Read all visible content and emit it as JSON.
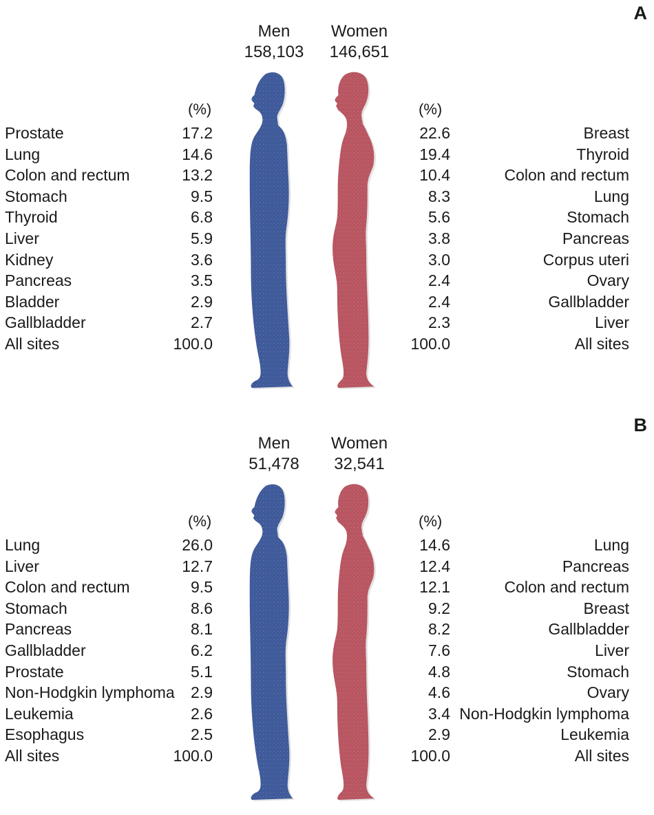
{
  "chart_data": [
    {
      "type": "table",
      "panel": "A",
      "pct_label": "(%)",
      "men": {
        "label": "Men",
        "total": "158,103",
        "color": "#3f5a9a",
        "rows": [
          {
            "site": "Prostate",
            "value": "17.2"
          },
          {
            "site": "Lung",
            "value": "14.6"
          },
          {
            "site": "Colon and rectum",
            "value": "13.2"
          },
          {
            "site": "Stomach",
            "value": "9.5"
          },
          {
            "site": "Thyroid",
            "value": "6.8"
          },
          {
            "site": "Liver",
            "value": "5.9"
          },
          {
            "site": "Kidney",
            "value": "3.6"
          },
          {
            "site": "Pancreas",
            "value": "3.5"
          },
          {
            "site": "Bladder",
            "value": "2.9"
          },
          {
            "site": "Gallbladder",
            "value": "2.7"
          },
          {
            "site": "All sites",
            "value": "100.0"
          }
        ]
      },
      "women": {
        "label": "Women",
        "total": "146,651",
        "color": "#b85560",
        "rows": [
          {
            "site": "Breast",
            "value": "22.6"
          },
          {
            "site": "Thyroid",
            "value": "19.4"
          },
          {
            "site": "Colon and rectum",
            "value": "10.4"
          },
          {
            "site": "Lung",
            "value": "8.3"
          },
          {
            "site": "Stomach",
            "value": "5.6"
          },
          {
            "site": "Pancreas",
            "value": "3.8"
          },
          {
            "site": "Corpus uteri",
            "value": "3.0"
          },
          {
            "site": "Ovary",
            "value": "2.4"
          },
          {
            "site": "Gallbladder",
            "value": "2.4"
          },
          {
            "site": "Liver",
            "value": "2.3"
          },
          {
            "site": "All sites",
            "value": "100.0"
          }
        ]
      }
    },
    {
      "type": "table",
      "panel": "B",
      "pct_label": "(%)",
      "men": {
        "label": "Men",
        "total": "51,478",
        "color": "#3f5a9a",
        "rows": [
          {
            "site": "Lung",
            "value": "26.0"
          },
          {
            "site": "Liver",
            "value": "12.7"
          },
          {
            "site": "Colon and rectum",
            "value": "9.5"
          },
          {
            "site": "Stomach",
            "value": "8.6"
          },
          {
            "site": "Pancreas",
            "value": "8.1"
          },
          {
            "site": "Gallbladder",
            "value": "6.2"
          },
          {
            "site": "Prostate",
            "value": "5.1"
          },
          {
            "site": "Non-Hodgkin lymphoma",
            "value": "2.9"
          },
          {
            "site": "Leukemia",
            "value": "2.6"
          },
          {
            "site": "Esophagus",
            "value": "2.5"
          },
          {
            "site": "All sites",
            "value": "100.0"
          }
        ]
      },
      "women": {
        "label": "Women",
        "total": "32,541",
        "color": "#b85560",
        "rows": [
          {
            "site": "Lung",
            "value": "14.6"
          },
          {
            "site": "Pancreas",
            "value": "12.4"
          },
          {
            "site": "Colon and rectum",
            "value": "12.1"
          },
          {
            "site": "Breast",
            "value": "9.2"
          },
          {
            "site": "Gallbladder",
            "value": "8.2"
          },
          {
            "site": "Liver",
            "value": "7.6"
          },
          {
            "site": "Stomach",
            "value": "4.8"
          },
          {
            "site": "Ovary",
            "value": "4.6"
          },
          {
            "site": "Non-Hodgkin lymphoma",
            "value": "3.4"
          },
          {
            "site": "Leukemia",
            "value": "2.9"
          },
          {
            "site": "All sites",
            "value": "100.0"
          }
        ]
      }
    }
  ]
}
